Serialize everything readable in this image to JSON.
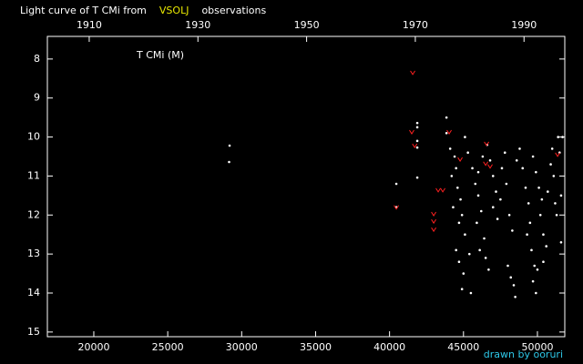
{
  "chart_data": {
    "type": "scatter",
    "title_parts": [
      {
        "text": "Light curve of T CMi from",
        "color": "#ffffff"
      },
      {
        "text": "VSOLJ",
        "color": "#e8e800"
      },
      {
        "text": "observations",
        "color": "#ffffff"
      }
    ],
    "star_label": "T CMi (M)",
    "credit": "drawn by ooruri",
    "credit_color": "#2ec8e8",
    "xlim": [
      16860,
      51850
    ],
    "xticks": [
      20000,
      25000,
      30000,
      35000,
      40000,
      45000,
      50000
    ],
    "x2lim": [
      1902.3,
      1997.5
    ],
    "x2ticks": [
      1910,
      1930,
      1950,
      1970,
      1990
    ],
    "ylim": [
      15.12,
      7.42
    ],
    "yticks": [
      8,
      9,
      10,
      11,
      12,
      13,
      14,
      15
    ],
    "series": [
      {
        "color": "#ffffff",
        "marker": "dot",
        "x": [
          29183,
          29150,
          40458,
          40458,
          41875,
          41875,
          41875,
          41875,
          41875,
          43850,
          43850,
          44100,
          44400,
          44500,
          44200,
          44600,
          44800,
          44300,
          44900,
          44700,
          45100,
          44500,
          44700,
          45000,
          44900,
          45400,
          45500,
          45100,
          45300,
          45600,
          45800,
          46000,
          46200,
          45900,
          46400,
          46100,
          46500,
          46700,
          46000,
          46300,
          46600,
          46800,
          47000,
          47200,
          47000,
          47300,
          47500,
          47600,
          47800,
          47900,
          48000,
          48200,
          48400,
          48500,
          48300,
          48100,
          48600,
          48800,
          49000,
          49200,
          49400,
          49500,
          49300,
          49600,
          49800,
          49700,
          49900,
          50000,
          49700,
          49900,
          50100,
          50300,
          50200,
          50400,
          50600,
          50400,
          50700,
          50900,
          51000,
          51100,
          51200,
          51300,
          51400,
          51500,
          51600,
          51600,
          51700
        ],
        "values": [
          10.22,
          10.64,
          11.2,
          11.8,
          9.64,
          9.75,
          10.1,
          10.27,
          11.04,
          9.5,
          9.9,
          10.3,
          10.5,
          10.8,
          11.0,
          11.3,
          11.6,
          11.8,
          12.0,
          12.2,
          12.5,
          12.9,
          13.2,
          13.5,
          13.9,
          13.0,
          14.0,
          10.0,
          10.4,
          10.8,
          11.2,
          11.5,
          11.9,
          12.2,
          12.6,
          12.9,
          13.1,
          13.4,
          10.9,
          10.5,
          10.2,
          10.6,
          11.0,
          11.4,
          11.8,
          12.1,
          11.6,
          10.8,
          10.4,
          11.2,
          13.3,
          13.6,
          13.8,
          14.1,
          12.4,
          12.0,
          10.6,
          10.3,
          10.8,
          11.3,
          11.7,
          12.2,
          12.5,
          12.9,
          13.3,
          13.7,
          14.0,
          13.4,
          10.5,
          10.9,
          11.3,
          11.6,
          12.0,
          12.5,
          12.8,
          13.2,
          11.4,
          10.7,
          10.3,
          11.0,
          11.7,
          12.0,
          10.0,
          10.4,
          11.5,
          12.7,
          10.0
        ]
      },
      {
        "color": "#ff2020",
        "marker": "fainter",
        "x": [
          41567,
          41500,
          41700,
          40458,
          42985,
          42985,
          42985,
          43290,
          43600,
          44030,
          44770,
          46560,
          46500,
          46800,
          51365
        ],
        "values": [
          8.35,
          9.87,
          10.22,
          11.8,
          11.97,
          12.16,
          12.37,
          11.36,
          11.36,
          9.87,
          10.57,
          10.17,
          10.68,
          10.75,
          10.45
        ]
      }
    ]
  }
}
